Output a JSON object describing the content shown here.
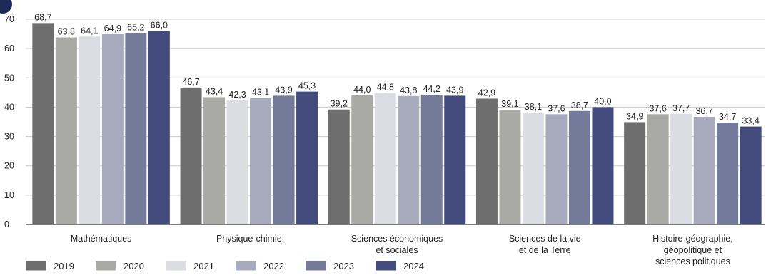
{
  "chart_data": {
    "type": "bar",
    "title": "",
    "xlabel": "",
    "ylabel": "",
    "ylim": [
      0,
      70
    ],
    "yticks": [
      0,
      10,
      20,
      30,
      40,
      50,
      60,
      70
    ],
    "grid": true,
    "legend_position": "bottom-left",
    "categories": [
      [
        "Mathématiques"
      ],
      [
        "Physique-chimie"
      ],
      [
        "Sciences économiques",
        "et sociales"
      ],
      [
        "Sciences de la vie",
        "et de la Terre"
      ],
      [
        "Histoire-géographie,",
        "géopolitique et",
        "sciences politiques"
      ]
    ],
    "series": [
      {
        "name": "2019",
        "color": "#6e6e6e",
        "values": [
          68.7,
          46.7,
          39.2,
          42.9,
          34.9
        ],
        "labels": [
          "68,7",
          "46,7",
          "39,2",
          "42,9",
          "34,9"
        ]
      },
      {
        "name": "2020",
        "color": "#a9a9a6",
        "values": [
          63.8,
          43.4,
          44.0,
          39.1,
          37.6
        ],
        "labels": [
          "63,8",
          "43,4",
          "44,0",
          "39,1",
          "37,6"
        ]
      },
      {
        "name": "2021",
        "color": "#dcdde2",
        "values": [
          64.1,
          42.3,
          44.8,
          38.1,
          37.7
        ],
        "labels": [
          "64,1",
          "42,3",
          "44,8",
          "38,1",
          "37,7"
        ]
      },
      {
        "name": "2022",
        "color": "#a7abbd",
        "values": [
          64.9,
          43.1,
          43.8,
          37.6,
          36.7
        ],
        "labels": [
          "64,9",
          "43,1",
          "43,8",
          "37,6",
          "36,7"
        ]
      },
      {
        "name": "2023",
        "color": "#747a99",
        "values": [
          65.2,
          43.9,
          44.2,
          38.7,
          34.7
        ],
        "labels": [
          "65,2",
          "43,9",
          "44,2",
          "38,7",
          "34,7"
        ]
      },
      {
        "name": "2024",
        "color": "#424b7c",
        "values": [
          66.0,
          45.3,
          43.9,
          40.0,
          33.4
        ],
        "labels": [
          "66,0",
          "45,3",
          "43,9",
          "40,0",
          "33,4"
        ]
      }
    ]
  }
}
